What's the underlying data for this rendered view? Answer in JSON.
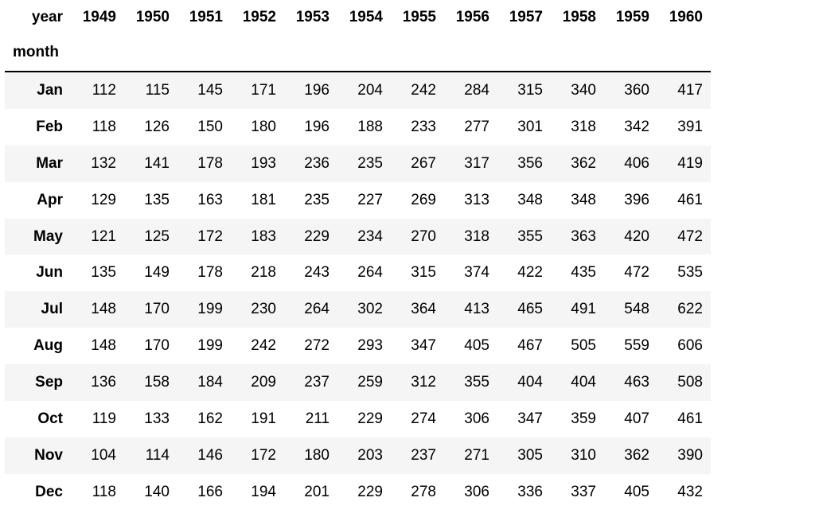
{
  "table": {
    "columns_index_name": "year",
    "rows_index_name": "month",
    "years": [
      "1949",
      "1950",
      "1951",
      "1952",
      "1953",
      "1954",
      "1955",
      "1956",
      "1957",
      "1958",
      "1959",
      "1960"
    ],
    "rows": [
      {
        "month": "Jan",
        "values": [
          "112",
          "115",
          "145",
          "171",
          "196",
          "204",
          "242",
          "284",
          "315",
          "340",
          "360",
          "417"
        ]
      },
      {
        "month": "Feb",
        "values": [
          "118",
          "126",
          "150",
          "180",
          "196",
          "188",
          "233",
          "277",
          "301",
          "318",
          "342",
          "391"
        ]
      },
      {
        "month": "Mar",
        "values": [
          "132",
          "141",
          "178",
          "193",
          "236",
          "235",
          "267",
          "317",
          "356",
          "362",
          "406",
          "419"
        ]
      },
      {
        "month": "Apr",
        "values": [
          "129",
          "135",
          "163",
          "181",
          "235",
          "227",
          "269",
          "313",
          "348",
          "348",
          "396",
          "461"
        ]
      },
      {
        "month": "May",
        "values": [
          "121",
          "125",
          "172",
          "183",
          "229",
          "234",
          "270",
          "318",
          "355",
          "363",
          "420",
          "472"
        ]
      },
      {
        "month": "Jun",
        "values": [
          "135",
          "149",
          "178",
          "218",
          "243",
          "264",
          "315",
          "374",
          "422",
          "435",
          "472",
          "535"
        ]
      },
      {
        "month": "Jul",
        "values": [
          "148",
          "170",
          "199",
          "230",
          "264",
          "302",
          "364",
          "413",
          "465",
          "491",
          "548",
          "622"
        ]
      },
      {
        "month": "Aug",
        "values": [
          "148",
          "170",
          "199",
          "242",
          "272",
          "293",
          "347",
          "405",
          "467",
          "505",
          "559",
          "606"
        ]
      },
      {
        "month": "Sep",
        "values": [
          "136",
          "158",
          "184",
          "209",
          "237",
          "259",
          "312",
          "355",
          "404",
          "404",
          "463",
          "508"
        ]
      },
      {
        "month": "Oct",
        "values": [
          "119",
          "133",
          "162",
          "191",
          "211",
          "229",
          "274",
          "306",
          "347",
          "359",
          "407",
          "461"
        ]
      },
      {
        "month": "Nov",
        "values": [
          "104",
          "114",
          "146",
          "172",
          "180",
          "203",
          "237",
          "271",
          "305",
          "310",
          "362",
          "390"
        ]
      },
      {
        "month": "Dec",
        "values": [
          "118",
          "140",
          "166",
          "194",
          "201",
          "229",
          "278",
          "306",
          "336",
          "337",
          "405",
          "432"
        ]
      }
    ]
  }
}
